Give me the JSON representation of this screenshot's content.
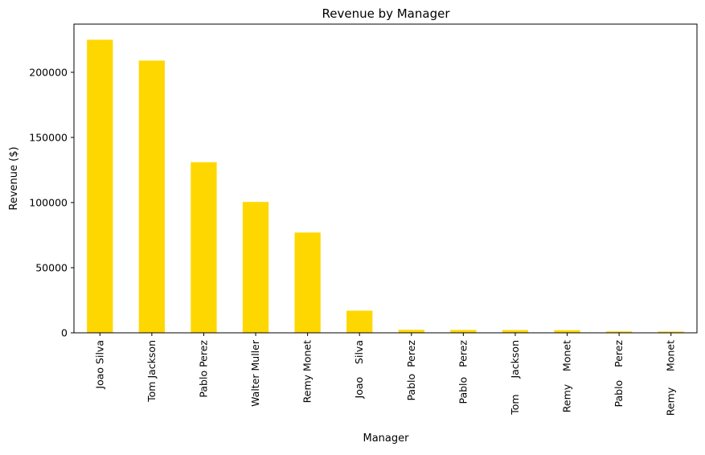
{
  "chart_data": {
    "type": "bar",
    "title": "Revenue by Manager",
    "xlabel": "Manager",
    "ylabel": "Revenue ($)",
    "categories": [
      "Joao Silva",
      "Tom Jackson",
      "Pablo Perez",
      "Walter Muller",
      "Remy Monet",
      "Joao    Silva",
      "Pablo  Perez",
      "Pablo   Perez",
      "Tom     Jackson",
      "Remy    Monet",
      "Pablo    Perez",
      "Remy     Monet"
    ],
    "values": [
      225000,
      209000,
      131000,
      100500,
      77000,
      17000,
      2300,
      2200,
      2100,
      2000,
      1100,
      1000
    ],
    "ylim": [
      0,
      237000
    ],
    "yticks": [
      0,
      50000,
      100000,
      150000,
      200000
    ],
    "ytick_labels": [
      "0",
      "50000",
      "100000",
      "150000",
      "200000"
    ],
    "bar_color": "#FFD700",
    "grid": false,
    "legend": "none"
  }
}
